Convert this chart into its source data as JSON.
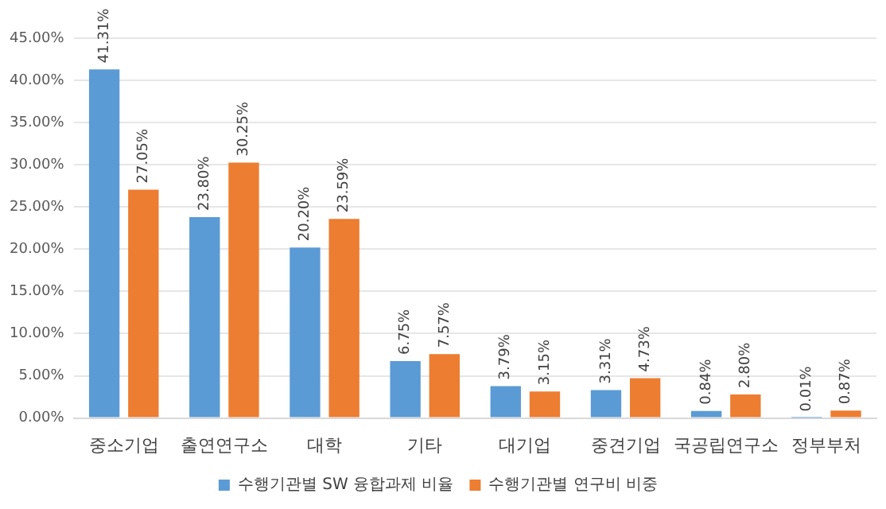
{
  "chart_data": {
    "type": "bar",
    "categories": [
      "중소기업",
      "출연연구소",
      "대학",
      "기타",
      "대기업",
      "중견기업",
      "국공립연구소",
      "정부부처"
    ],
    "series": [
      {
        "name": "수행기관별 SW 융합과제 비율",
        "color": "#5b9bd5",
        "values": [
          41.31,
          23.8,
          20.2,
          6.75,
          3.79,
          3.31,
          0.84,
          0.01
        ],
        "value_labels": [
          "41.31%",
          "23.80%",
          "20.20%",
          "6.75%",
          "3.79%",
          "3.31%",
          "0.84%",
          "0.01%"
        ]
      },
      {
        "name": "수행기관별 연구비 비중",
        "color": "#ed7d31",
        "values": [
          27.05,
          30.25,
          23.59,
          7.57,
          3.15,
          4.73,
          2.8,
          0.87
        ],
        "value_labels": [
          "27.05%",
          "30.25%",
          "23.59%",
          "7.57%",
          "3.15%",
          "4.73%",
          "2.80%",
          "0.87%"
        ]
      }
    ],
    "ylim": [
      0,
      45
    ],
    "yticks": [
      {
        "value": 0,
        "label": "0.00%"
      },
      {
        "value": 5,
        "label": "5.00%"
      },
      {
        "value": 10,
        "label": "10.00%"
      },
      {
        "value": 15,
        "label": "15.00%"
      },
      {
        "value": 20,
        "label": "20.00%"
      },
      {
        "value": 25,
        "label": "25.00%"
      },
      {
        "value": 30,
        "label": "30.00%"
      },
      {
        "value": 35,
        "label": "35.00%"
      },
      {
        "value": 40,
        "label": "40.00%"
      },
      {
        "value": 45,
        "label": "45.00%"
      }
    ],
    "grid": "y",
    "legend": "bottom"
  }
}
